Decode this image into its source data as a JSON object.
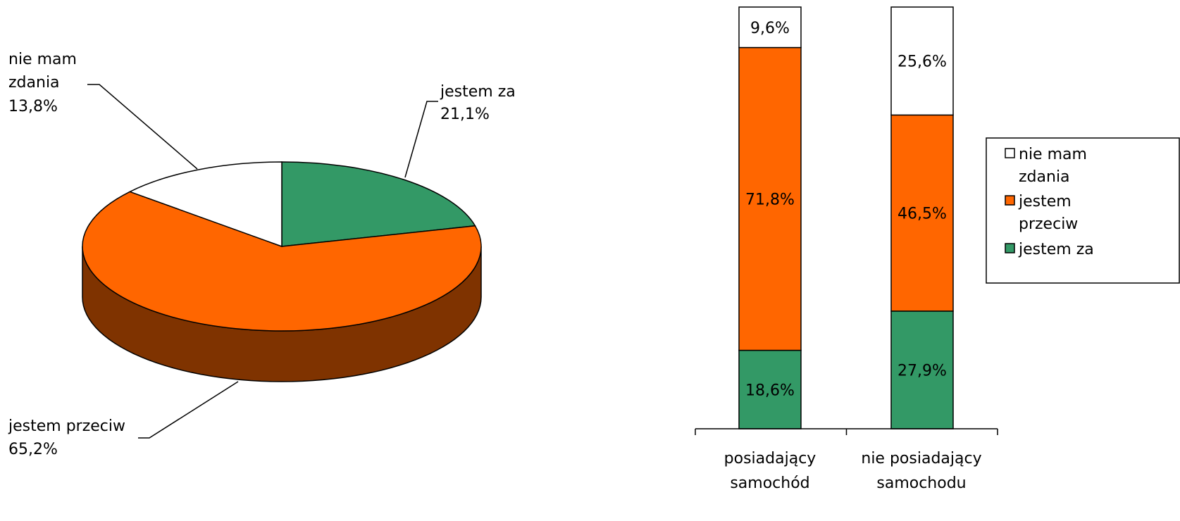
{
  "chart_data": [
    {
      "type": "pie",
      "categories": [
        "jestem za",
        "jestem przeciw",
        "nie mam zdania"
      ],
      "values": [
        21.1,
        65.2,
        13.8
      ],
      "value_labels": [
        "21,1%",
        "65,2%",
        "13,8%"
      ],
      "slice_labels": {
        "za": [
          "jestem za",
          "21,1%"
        ],
        "przeciw": [
          "jestem przeciw",
          "65,2%"
        ],
        "zdania": [
          "nie mam",
          "zdania",
          "13,8%"
        ]
      },
      "three_d": true,
      "colors": {
        "jestem za": "#339966",
        "jestem przeciw": "#FF6600",
        "nie mam zdania": "#FFFFFF",
        "side_przeciw": "#7F3300"
      }
    },
    {
      "type": "bar",
      "stacked": "100%",
      "categories": [
        [
          "posiadający",
          "samochód"
        ],
        [
          "nie posiadający",
          "samochodu"
        ]
      ],
      "series": [
        {
          "name": "jestem za",
          "values": [
            18.6,
            27.9
          ],
          "labels": [
            "18,6%",
            "27,9%"
          ],
          "color": "#339966"
        },
        {
          "name": "jestem przeciw",
          "values": [
            71.8,
            46.5
          ],
          "labels": [
            "71,8%",
            "46,5%"
          ],
          "color": "#FF6600"
        },
        {
          "name": "nie mam zdania",
          "values": [
            9.6,
            25.6
          ],
          "labels": [
            "9,6%",
            "25,6%"
          ],
          "color": "#FFFFFF"
        }
      ],
      "legend": {
        "placement": "right",
        "entries": [
          {
            "lines": [
              "nie mam",
              "zdania"
            ],
            "color": "#FFFFFF"
          },
          {
            "lines": [
              "jestem",
              "przeciw"
            ],
            "color": "#FF6600"
          },
          {
            "lines": [
              "jestem za"
            ],
            "color": "#339966"
          }
        ]
      },
      "ylim": [
        0,
        100
      ],
      "grid": false
    }
  ]
}
